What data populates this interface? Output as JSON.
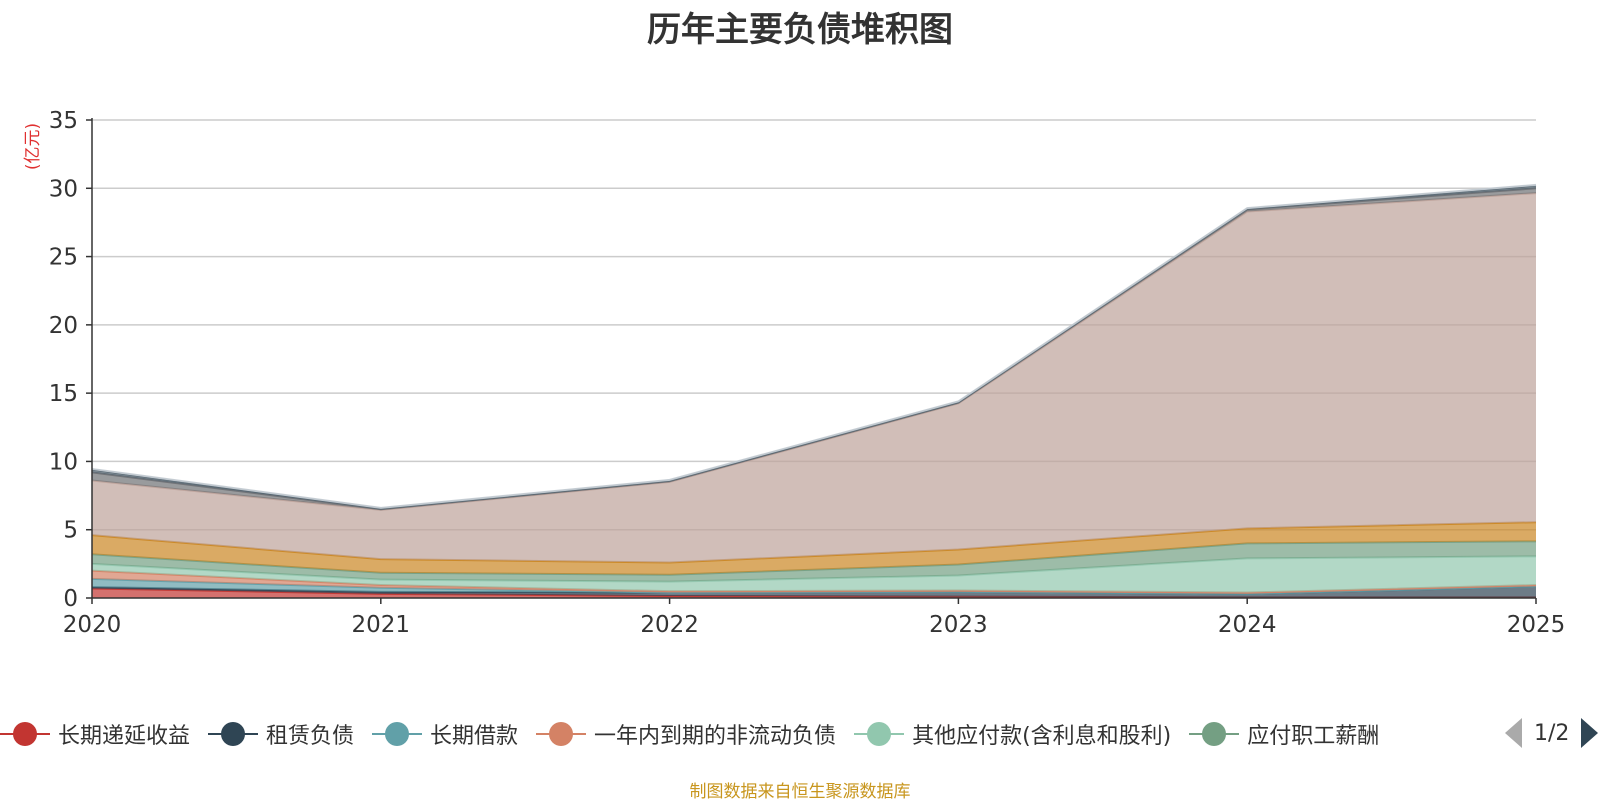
{
  "title": "历年主要负债堆积图",
  "unit": "(亿元)",
  "source": "制图数据来自恒生聚源数据库",
  "pager": {
    "text": "1/2"
  },
  "legend": [
    {
      "name": "长期递延收益",
      "color": "#c23531"
    },
    {
      "name": "租赁负债",
      "color": "#2f4554"
    },
    {
      "name": "长期借款",
      "color": "#61a0a8"
    },
    {
      "name": "一年内到期的非流动负债",
      "color": "#d48265"
    },
    {
      "name": "其他应付款(含利息和股利)",
      "color": "#91c7ae"
    },
    {
      "name": "应付职工薪酬",
      "color": "#749f83"
    }
  ],
  "chart_data": {
    "type": "area",
    "stacked": true,
    "x": [
      "2020",
      "2021",
      "2022",
      "2023",
      "2024",
      "2025"
    ],
    "ylim": [
      0,
      35
    ],
    "yticks": [
      0,
      5,
      10,
      15,
      20,
      25,
      30,
      35
    ],
    "grid": true,
    "series": [
      {
        "name": "长期递延收益",
        "color": "#c23531",
        "values": [
          0.7,
          0.3,
          0.15,
          0.1,
          0.05,
          0.05
        ]
      },
      {
        "name": "租赁负债",
        "color": "#2f4554",
        "values": [
          0.1,
          0.15,
          0.25,
          0.35,
          0.25,
          0.8
        ]
      },
      {
        "name": "长期借款",
        "color": "#61a0a8",
        "values": [
          0.6,
          0.3,
          0.0,
          0.0,
          0.0,
          0.0
        ]
      },
      {
        "name": "一年内到期的非流动负债",
        "color": "#d48265",
        "values": [
          0.6,
          0.2,
          0.1,
          0.1,
          0.1,
          0.1
        ]
      },
      {
        "name": "其他应付款(含利息和股利)",
        "color": "#91c7ae",
        "values": [
          0.5,
          0.4,
          0.7,
          1.1,
          2.5,
          2.1
        ]
      },
      {
        "name": "应付职工薪酬",
        "color": "#749f83",
        "values": [
          0.7,
          0.5,
          0.5,
          0.8,
          1.1,
          1.1
        ]
      },
      {
        "name": "",
        "color": "#ca8622",
        "values": [
          1.4,
          1.0,
          0.9,
          1.1,
          1.1,
          1.4
        ]
      },
      {
        "name": "",
        "color": "#bda29a",
        "values": [
          4.0,
          3.6,
          5.9,
          10.7,
          23.2,
          24.1
        ]
      },
      {
        "name": "",
        "color": "#6e7074",
        "values": [
          0.6,
          0.05,
          0.05,
          0.05,
          0.15,
          0.35
        ]
      },
      {
        "name": "",
        "color": "#546570",
        "values": [
          0.2,
          0.05,
          0.05,
          0.05,
          0.05,
          0.2
        ]
      },
      {
        "name": "",
        "color": "#c4ccd3",
        "values": [
          0.05,
          0.05,
          0.05,
          0.05,
          0.05,
          0.05
        ]
      }
    ]
  }
}
